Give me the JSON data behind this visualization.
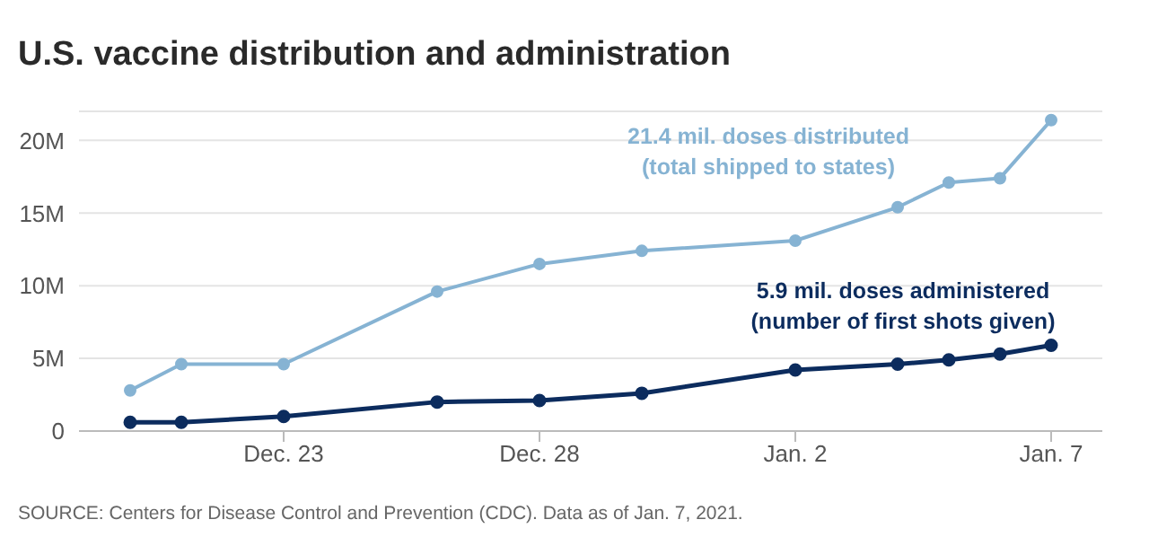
{
  "chart_data": {
    "type": "line",
    "title": "U.S. vaccine distribution and administration",
    "x": [
      "2020-12-20",
      "2020-12-21",
      "2020-12-23",
      "2020-12-26",
      "2020-12-28",
      "2020-12-30",
      "2021-01-02",
      "2021-01-04",
      "2021-01-05",
      "2021-01-06",
      "2021-01-07"
    ],
    "series": [
      {
        "name": "21.4 mil. doses distributed\n(total shipped to states)",
        "color": "#86b3d3",
        "values": [
          2.8,
          4.6,
          4.6,
          9.6,
          11.5,
          12.4,
          13.1,
          15.4,
          17.1,
          17.4,
          21.4
        ]
      },
      {
        "name": "5.9 mil. doses administered\n(number of first shots given)",
        "color": "#0c2c5e",
        "values": [
          0.6,
          0.6,
          1.0,
          2.0,
          2.1,
          2.6,
          4.2,
          4.6,
          4.9,
          5.3,
          5.9
        ]
      }
    ],
    "xlim": [
      "2020-12-19",
      "2021-01-08"
    ],
    "xticks": [
      {
        "value": "2020-12-23",
        "label": "Dec. 23"
      },
      {
        "value": "2020-12-28",
        "label": "Dec. 28"
      },
      {
        "value": "2021-01-02",
        "label": "Jan. 2"
      },
      {
        "value": "2021-01-07",
        "label": "Jan. 7"
      }
    ],
    "ylim": [
      0,
      22
    ],
    "yticks": [
      {
        "value": 0,
        "label": "0"
      },
      {
        "value": 5,
        "label": "5M"
      },
      {
        "value": 10,
        "label": "10M"
      },
      {
        "value": 15,
        "label": "15M"
      },
      {
        "value": 20,
        "label": "20M"
      }
    ],
    "grid": "y",
    "marker": "circle",
    "line_style": "solid",
    "annotations": [
      "SOURCE: Centers for Disease Control and Prevention (CDC). Data as of Jan. 7, 2021."
    ]
  }
}
